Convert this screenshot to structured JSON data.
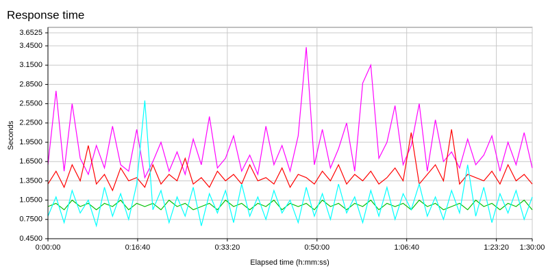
{
  "chart_data": {
    "type": "line",
    "title": "Response time",
    "y_label": "Seconds",
    "x_label": "Elapsed time (h:mm:ss)",
    "grid": true,
    "xlim": [
      0,
      5400
    ],
    "xticks": [
      {
        "value": 0,
        "label": "0:00:00"
      },
      {
        "value": 1000,
        "label": "0:16:40"
      },
      {
        "value": 2000,
        "label": "0:33:20"
      },
      {
        "value": 3000,
        "label": "0:50:00"
      },
      {
        "value": 4000,
        "label": "1:06:40"
      },
      {
        "value": 5000,
        "label": "1:23:20"
      },
      {
        "value": 5400,
        "label": "1:30:00"
      }
    ],
    "ylim": [
      0.45,
      3.6525
    ],
    "yticks": [
      {
        "value": 0.45,
        "label": "0.4500"
      },
      {
        "value": 0.75,
        "label": "0.7500"
      },
      {
        "value": 1.05,
        "label": "1.0500"
      },
      {
        "value": 1.35,
        "label": "1.3500"
      },
      {
        "value": 1.65,
        "label": "1.6500"
      },
      {
        "value": 1.95,
        "label": "1.9500"
      },
      {
        "value": 2.25,
        "label": "2.2500"
      },
      {
        "value": 2.55,
        "label": "2.5500"
      },
      {
        "value": 2.85,
        "label": "2.8500"
      },
      {
        "value": 3.15,
        "label": "3.1500"
      },
      {
        "value": 3.45,
        "label": "3.4500"
      },
      {
        "value": 3.6525,
        "label": "3.6525"
      }
    ],
    "x": [
      0,
      90,
      180,
      270,
      360,
      450,
      540,
      630,
      720,
      810,
      900,
      990,
      1080,
      1170,
      1260,
      1350,
      1440,
      1530,
      1620,
      1710,
      1800,
      1890,
      1980,
      2070,
      2160,
      2250,
      2340,
      2430,
      2520,
      2610,
      2700,
      2790,
      2880,
      2970,
      3060,
      3150,
      3240,
      3330,
      3420,
      3510,
      3600,
      3690,
      3780,
      3870,
      3960,
      4050,
      4140,
      4230,
      4320,
      4410,
      4500,
      4590,
      4680,
      4770,
      4860,
      4950,
      5040,
      5130,
      5220,
      5310,
      5400
    ],
    "series": [
      {
        "color": "#ff00ff",
        "values": [
          1.6,
          2.75,
          1.5,
          2.55,
          1.7,
          1.45,
          1.9,
          1.55,
          2.2,
          1.6,
          1.5,
          2.15,
          1.4,
          1.65,
          1.95,
          1.5,
          1.8,
          1.45,
          2.0,
          1.6,
          2.35,
          1.55,
          1.7,
          2.05,
          1.5,
          1.75,
          1.45,
          2.2,
          1.6,
          1.9,
          1.5,
          2.05,
          3.43,
          1.6,
          2.15,
          1.55,
          1.85,
          2.25,
          1.5,
          2.87,
          3.15,
          1.7,
          1.95,
          2.52,
          1.6,
          1.9,
          2.55,
          1.5,
          2.3,
          1.65,
          1.8,
          1.55,
          2.0,
          1.6,
          1.75,
          2.05,
          1.5,
          1.95,
          1.6,
          2.1,
          1.55
        ]
      },
      {
        "color": "#ff0000",
        "values": [
          1.3,
          1.5,
          1.25,
          1.6,
          1.35,
          1.9,
          1.3,
          1.45,
          1.2,
          1.55,
          1.35,
          1.4,
          1.25,
          1.6,
          1.3,
          1.45,
          1.35,
          1.7,
          1.3,
          1.4,
          1.25,
          1.5,
          1.35,
          1.45,
          1.3,
          1.6,
          1.35,
          1.4,
          1.3,
          1.55,
          1.25,
          1.45,
          1.4,
          1.3,
          1.5,
          1.35,
          1.6,
          1.3,
          1.45,
          1.35,
          1.5,
          1.3,
          1.4,
          1.55,
          1.35,
          2.1,
          1.3,
          1.45,
          1.6,
          1.35,
          2.15,
          1.3,
          1.45,
          1.4,
          1.35,
          1.5,
          1.3,
          1.6,
          1.35,
          1.45,
          1.3
        ]
      },
      {
        "color": "#00c000",
        "values": [
          0.95,
          1.0,
          0.9,
          1.05,
          0.95,
          1.0,
          0.9,
          1.0,
          0.95,
          1.05,
          0.9,
          1.0,
          0.95,
          1.0,
          0.9,
          1.05,
          0.95,
          1.0,
          0.9,
          0.95,
          1.0,
          0.9,
          1.05,
          0.95,
          1.0,
          0.9,
          1.0,
          0.95,
          1.05,
          0.9,
          1.0,
          0.95,
          1.0,
          0.9,
          1.05,
          0.95,
          1.0,
          0.9,
          1.0,
          0.95,
          1.05,
          0.9,
          1.0,
          0.95,
          1.0,
          0.9,
          1.05,
          0.95,
          1.0,
          0.9,
          0.95,
          1.0,
          0.9,
          1.05,
          0.95,
          1.0,
          0.9,
          1.0,
          0.95,
          1.05,
          0.9
        ]
      },
      {
        "color": "#00ffff",
        "values": [
          0.8,
          1.1,
          0.7,
          1.2,
          0.85,
          1.05,
          0.65,
          1.25,
          0.8,
          1.15,
          0.75,
          1.3,
          2.6,
          0.9,
          1.2,
          0.7,
          1.1,
          0.8,
          1.25,
          0.65,
          1.15,
          0.85,
          1.2,
          0.7,
          1.3,
          0.8,
          1.1,
          0.75,
          1.2,
          0.85,
          1.05,
          0.7,
          1.25,
          0.8,
          1.15,
          0.75,
          1.3,
          0.85,
          1.1,
          0.7,
          1.2,
          0.8,
          1.25,
          0.75,
          1.15,
          0.9,
          1.3,
          0.8,
          1.1,
          0.75,
          1.2,
          0.85,
          1.6,
          0.8,
          1.25,
          0.7,
          1.15,
          0.85,
          1.2,
          0.75,
          1.1
        ]
      }
    ]
  }
}
